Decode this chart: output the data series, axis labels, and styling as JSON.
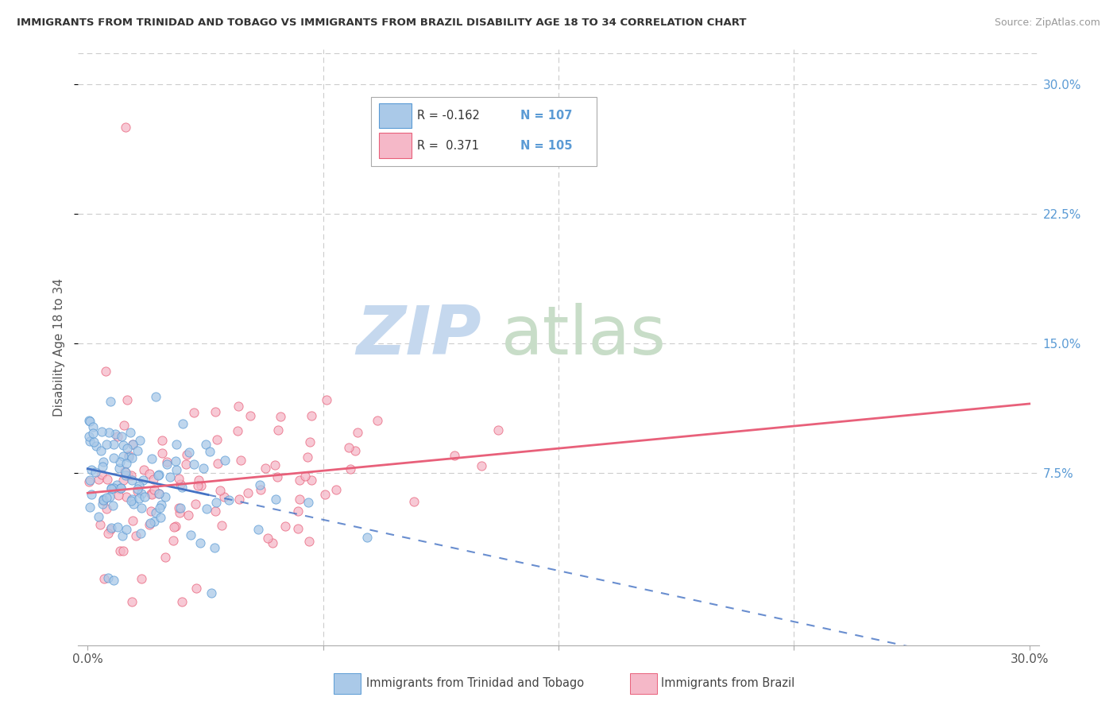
{
  "title": "IMMIGRANTS FROM TRINIDAD AND TOBAGO VS IMMIGRANTS FROM BRAZIL DISABILITY AGE 18 TO 34 CORRELATION CHART",
  "source": "Source: ZipAtlas.com",
  "ylabel": "Disability Age 18 to 34",
  "color_tt": "#aac9e8",
  "color_tt_edge": "#5b9bd5",
  "color_brazil": "#f5b8c8",
  "color_brazil_edge": "#e8607a",
  "color_tt_line": "#4472c4",
  "color_brazil_line": "#e8607a",
  "legend_R_tt": "-0.162",
  "legend_N_tt": "107",
  "legend_R_brazil": "0.371",
  "legend_N_brazil": "105",
  "watermark_zip_color": "#c5d8ee",
  "watermark_atlas_color": "#c8ddc8",
  "n_tt": 107,
  "n_brazil": 105,
  "R_tt": -0.162,
  "R_brazil": 0.371,
  "xlim": [
    0.0,
    0.3
  ],
  "ylim": [
    -0.025,
    0.32
  ],
  "x_tick_positions": [
    0.0,
    0.075,
    0.15,
    0.225,
    0.3
  ],
  "y_tick_positions": [
    0.075,
    0.15,
    0.225,
    0.3
  ],
  "y_tick_labels": [
    "7.5%",
    "15.0%",
    "22.5%",
    "30.0%"
  ]
}
